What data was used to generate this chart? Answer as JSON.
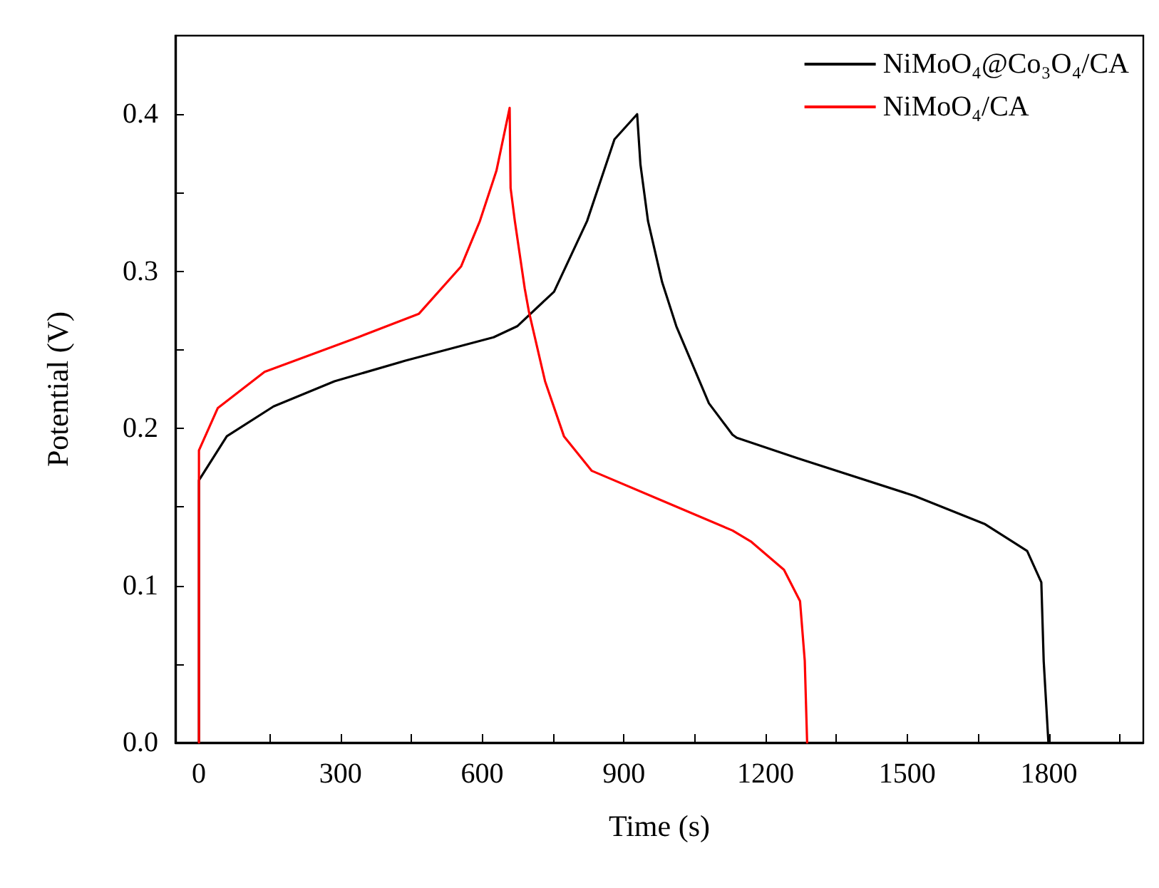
{
  "chart_data": {
    "type": "line",
    "xlabel": "Time (s)",
    "ylabel": "Potential (V)",
    "xlim": [
      -50,
      2000
    ],
    "ylim": [
      0,
      0.45
    ],
    "xticks": [
      0,
      {
        "value": 150,
        "label": null
      },
      300,
      {
        "value": 450,
        "label": null
      },
      600,
      {
        "value": 750,
        "label": null
      },
      900,
      {
        "value": 1050,
        "label": null
      },
      1200,
      {
        "value": 1350,
        "label": null
      },
      1500,
      {
        "value": 1650,
        "label": null
      },
      1800,
      {
        "value": 1950,
        "label": null
      }
    ],
    "yticks": [
      {
        "value": 0,
        "label": "0.0"
      },
      {
        "value": 0.05,
        "label": null
      },
      0.1,
      {
        "value": 0.15,
        "label": null
      },
      0.2,
      {
        "value": 0.25,
        "label": null
      },
      0.3,
      {
        "value": 0.35,
        "label": null
      },
      0.4
    ],
    "series": [
      {
        "name": "NiMoO₄@Co₃O₄/CA",
        "color": "#000000",
        "x": [
          0,
          0,
          59,
          158,
          287,
          436,
          624,
          674,
          752,
          822,
          880,
          928,
          935,
          951,
          981,
          1011,
          1080,
          1130,
          1139,
          1268,
          1516,
          1665,
          1754,
          1784,
          1789,
          1799
        ],
        "values": [
          0,
          0.167,
          0.195,
          0.214,
          0.23,
          0.243,
          0.258,
          0.265,
          0.287,
          0.332,
          0.384,
          0.4,
          0.368,
          0.332,
          0.293,
          0.265,
          0.216,
          0.196,
          0.194,
          0.181,
          0.157,
          0.139,
          0.122,
          0.102,
          0.052,
          0
        ]
      },
      {
        "name": "NiMoO₄/CA",
        "color": "#ff0000",
        "x": [
          0,
          0,
          40,
          139,
          337,
          466,
          555,
          595,
          630,
          658,
          660,
          669,
          690,
          699,
          733,
          773,
          832,
          981,
          1130,
          1169,
          1239,
          1273,
          1283,
          1288
        ],
        "values": [
          0,
          0.186,
          0.213,
          0.236,
          0.258,
          0.273,
          0.303,
          0.332,
          0.364,
          0.404,
          0.353,
          0.332,
          0.289,
          0.274,
          0.23,
          0.195,
          0.173,
          0.154,
          0.135,
          0.128,
          0.11,
          0.09,
          0.052,
          0
        ]
      }
    ],
    "grid": false,
    "legend": "top right",
    "marker": "none",
    "line_style": "solid"
  }
}
